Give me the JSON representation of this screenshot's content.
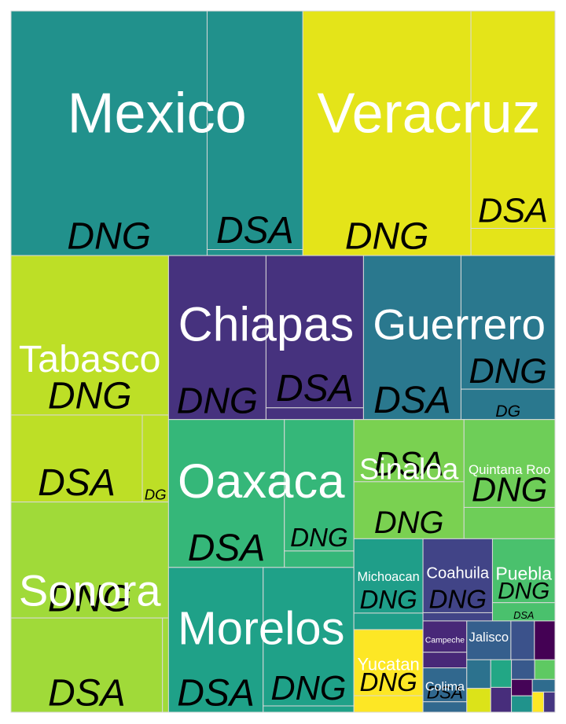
{
  "chart_data": {
    "type": "treemap",
    "title": "",
    "hierarchy": [
      "state",
      "type"
    ],
    "states": [
      {
        "name": "Mexico",
        "show_label": true,
        "color": "#21918c",
        "subgroups": [
          {
            "type": "DNG",
            "value": 42,
            "show_label": true,
            "color": "#21918c"
          },
          {
            "type": "DSA",
            "value": 20,
            "show_label": true,
            "color": "#21918c"
          },
          {
            "type": "other",
            "value": 0.5,
            "show_label": false,
            "color": "#21918c"
          }
        ]
      },
      {
        "name": "Veracruz",
        "show_label": true,
        "color": "#e4e419",
        "subgroups": [
          {
            "type": "DNG",
            "value": 36,
            "show_label": true,
            "color": "#e4e419"
          },
          {
            "type": "DSA",
            "value": 16,
            "show_label": true,
            "color": "#e4e419"
          },
          {
            "type": "other",
            "value": 2,
            "show_label": false,
            "color": "#e4e419"
          }
        ]
      },
      {
        "name": "Sonora",
        "show_label": true,
        "color": "#a0da39",
        "subgroups": [
          {
            "type": "DNG",
            "value": 16,
            "show_label": true,
            "color": "#a0da39"
          },
          {
            "type": "DSA",
            "value": 12.5,
            "show_label": true,
            "color": "#a0da39"
          },
          {
            "type": "other",
            "value": 0.5,
            "show_label": false,
            "color": "#a0da39"
          }
        ]
      },
      {
        "name": "Chiapas",
        "show_label": true,
        "color": "#46327e",
        "subgroups": [
          {
            "type": "DNG",
            "value": 14,
            "show_label": true,
            "color": "#46327e"
          },
          {
            "type": "DSA",
            "value": 13,
            "show_label": true,
            "color": "#46327e"
          },
          {
            "type": "other",
            "value": 1,
            "show_label": false,
            "color": "#46327e"
          }
        ]
      },
      {
        "name": "Tabasco",
        "show_label": true,
        "color": "#bddf26",
        "subgroups": [
          {
            "type": "DNG",
            "value": 22,
            "show_label": true,
            "color": "#bddf26"
          },
          {
            "type": "DSA",
            "value": 10,
            "show_label": true,
            "color": "#bddf26"
          },
          {
            "type": "DG",
            "value": 2,
            "show_label": true,
            "color": "#bddf26"
          }
        ]
      },
      {
        "name": "Guerrero",
        "show_label": true,
        "color": "#2a788e",
        "subgroups": [
          {
            "type": "DSA",
            "value": 14,
            "show_label": true,
            "color": "#2a788e"
          },
          {
            "type": "DNG",
            "value": 11,
            "show_label": true,
            "color": "#2a788e"
          },
          {
            "type": "DG",
            "value": 2.5,
            "show_label": true,
            "color": "#2a788e"
          }
        ]
      },
      {
        "name": "Oaxaca",
        "show_label": true,
        "color": "#35b779",
        "subgroups": [
          {
            "type": "DSA",
            "value": 15,
            "show_label": true,
            "color": "#35b779"
          },
          {
            "type": "DNG",
            "value": 8,
            "show_label": true,
            "color": "#35b779"
          },
          {
            "type": "other",
            "value": 1,
            "show_label": false,
            "color": "#35b779"
          }
        ]
      },
      {
        "name": "Morelos",
        "show_label": true,
        "color": "#1fa188",
        "subgroups": [
          {
            "type": "DSA",
            "value": 12,
            "show_label": true,
            "color": "#1fa188"
          },
          {
            "type": "DNG",
            "value": 11,
            "show_label": true,
            "color": "#1fa188"
          },
          {
            "type": "other",
            "value": 0.5,
            "show_label": false,
            "color": "#1fa188"
          }
        ]
      },
      {
        "name": "Sinaloa",
        "show_label": true,
        "color": "#7ad151",
        "subgroups": [
          {
            "type": "DSA",
            "value": 6,
            "show_label": true,
            "color": "#7ad151"
          },
          {
            "type": "DNG",
            "value": 5.5,
            "show_label": true,
            "color": "#7ad151"
          }
        ]
      },
      {
        "name": "Quintana Roo",
        "show_label": true,
        "color": "#6ece58",
        "subgroups": [
          {
            "type": "DNG",
            "value": 7,
            "show_label": true,
            "color": "#6ece58"
          },
          {
            "type": "other",
            "value": 2.5,
            "show_label": false,
            "color": "#6ece58"
          }
        ]
      },
      {
        "name": "Michoacan",
        "show_label": true,
        "color": "#1f9e89",
        "subgroups": [
          {
            "type": "DNG",
            "value": 4.5,
            "show_label": true,
            "color": "#1f9e89"
          },
          {
            "type": "other",
            "value": 1,
            "show_label": false,
            "color": "#1f9e89"
          }
        ]
      },
      {
        "name": "Yucatan",
        "show_label": true,
        "color": "#fde725",
        "subgroups": [
          {
            "type": "DNG",
            "value": 4,
            "show_label": true,
            "color": "#fde725"
          },
          {
            "type": "other",
            "value": 1,
            "show_label": false,
            "color": "#fde725"
          }
        ]
      },
      {
        "name": "Coahuila",
        "show_label": true,
        "color": "#414487",
        "subgroups": [
          {
            "type": "DNG",
            "value": 4.5,
            "show_label": true,
            "color": "#414487"
          },
          {
            "type": "other",
            "value": 0.5,
            "show_label": false,
            "color": "#414487"
          }
        ]
      },
      {
        "name": "Puebla",
        "show_label": true,
        "color": "#4ac16d",
        "subgroups": [
          {
            "type": "DNG",
            "value": 3.5,
            "show_label": true,
            "color": "#4ac16d"
          },
          {
            "type": "DSA",
            "value": 1,
            "show_label": true,
            "color": "#4ac16d"
          }
        ]
      },
      {
        "name": "Colima",
        "show_label": true,
        "color": "#31688e",
        "subgroups": [
          {
            "type": "DSA",
            "value": 1.3,
            "show_label": true,
            "color": "#31688e"
          },
          {
            "type": "other",
            "value": 0.4,
            "show_label": false,
            "color": "#31688e"
          }
        ]
      },
      {
        "name": "Jalisco",
        "show_label": true,
        "color": "#355f8d",
        "subgroups": [
          {
            "type": "other",
            "value": 1.5,
            "show_label": false,
            "color": "#355f8d"
          }
        ]
      },
      {
        "name": "Campeche",
        "show_label": true,
        "color": "#482878",
        "subgroups": [
          {
            "type": "other",
            "value": 1.2,
            "show_label": false,
            "color": "#482878"
          },
          {
            "type": "other",
            "value": 0.6,
            "show_label": false,
            "color": "#482878"
          }
        ]
      },
      {
        "name": "",
        "show_label": false,
        "color": "#3b528b",
        "subgroups": [
          {
            "type": "other",
            "value": 0.8,
            "show_label": false,
            "color": "#3b528b"
          }
        ]
      },
      {
        "name": "",
        "show_label": false,
        "color": "#440154",
        "subgroups": [
          {
            "type": "other",
            "value": 0.7,
            "show_label": false,
            "color": "#440154"
          }
        ]
      },
      {
        "name": "",
        "show_label": false,
        "color": "#2c728e",
        "subgroups": [
          {
            "type": "other",
            "value": 0.6,
            "show_label": false,
            "color": "#2c728e"
          }
        ]
      },
      {
        "name": "",
        "show_label": false,
        "color": "#dce319",
        "subgroups": [
          {
            "type": "other",
            "value": 0.5,
            "show_label": false,
            "color": "#dce319"
          }
        ]
      },
      {
        "name": "",
        "show_label": false,
        "color": "#22a785",
        "subgroups": [
          {
            "type": "other",
            "value": 0.5,
            "show_label": false,
            "color": "#22a785"
          }
        ]
      },
      {
        "name": "",
        "show_label": false,
        "color": "#472d7b",
        "subgroups": [
          {
            "type": "other",
            "value": 0.45,
            "show_label": false,
            "color": "#472d7b"
          }
        ]
      },
      {
        "name": "",
        "show_label": false,
        "color": "#38598c",
        "subgroups": [
          {
            "type": "other",
            "value": 0.4,
            "show_label": false,
            "color": "#38598c"
          }
        ]
      },
      {
        "name": "",
        "show_label": false,
        "color": "#5ec962",
        "subgroups": [
          {
            "type": "other",
            "value": 0.35,
            "show_label": false,
            "color": "#5ec962"
          }
        ]
      },
      {
        "name": "",
        "show_label": false,
        "color": "#450457",
        "subgroups": [
          {
            "type": "other",
            "value": 0.3,
            "show_label": false,
            "color": "#450457"
          }
        ]
      },
      {
        "name": "",
        "show_label": false,
        "color": "#20938c",
        "subgroups": [
          {
            "type": "other",
            "value": 0.3,
            "show_label": false,
            "color": "#20938c"
          }
        ]
      },
      {
        "name": "",
        "show_label": false,
        "color": "#2f6c8e",
        "subgroups": [
          {
            "type": "other",
            "value": 0.25,
            "show_label": false,
            "color": "#2f6c8e"
          }
        ]
      },
      {
        "name": "",
        "show_label": false,
        "color": "#fde725",
        "subgroups": [
          {
            "type": "other",
            "value": 0.2,
            "show_label": false,
            "color": "#fde725"
          }
        ]
      },
      {
        "name": "",
        "show_label": false,
        "color": "#453581",
        "subgroups": [
          {
            "type": "other",
            "value": 0.2,
            "show_label": false,
            "color": "#453581"
          }
        ]
      }
    ]
  }
}
